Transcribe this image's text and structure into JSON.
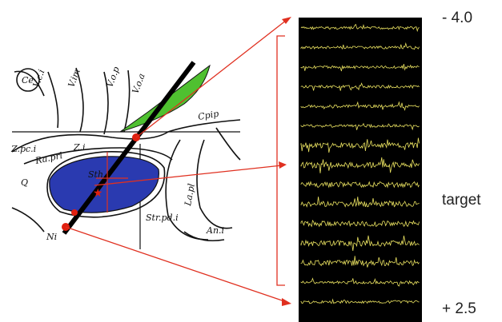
{
  "scale": {
    "top": "- 4.0",
    "middle": "target",
    "bottom": "+ 2.5"
  },
  "atlas_labels": [
    "Ce",
    "V.c.i",
    "V.im",
    "V.o.p",
    "V.o.a",
    "Cpip",
    "Z.pc.i",
    "Ra.prl",
    "Z.i",
    "Q",
    "Sth",
    "Str.pd.i",
    "La.pl",
    "An.i",
    "Ni"
  ]
}
